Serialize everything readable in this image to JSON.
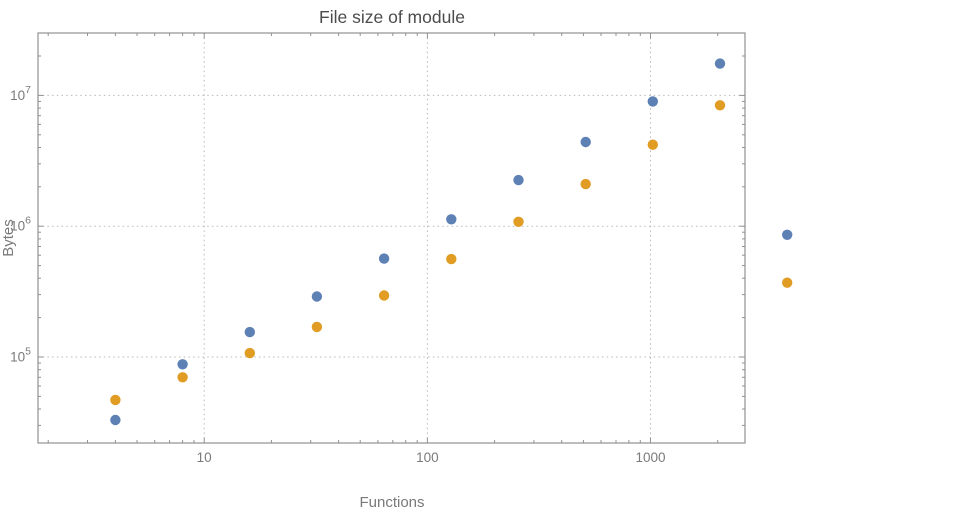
{
  "chart_data": {
    "type": "scatter",
    "title": "File size of module",
    "xlabel": "Functions",
    "ylabel": "Bytes",
    "x_scale": "log",
    "y_scale": "log",
    "grid": "dotted",
    "legend": "none",
    "xlim": [
      1.8,
      2650
    ],
    "ylim": [
      22000,
      30000000
    ],
    "x_major_ticks": [
      10,
      100,
      1000
    ],
    "y_major_ticks": [
      100000,
      1000000,
      10000000
    ],
    "x": [
      4,
      8,
      16,
      32,
      64,
      128,
      256,
      512,
      1024,
      2048,
      4096
    ],
    "series": [
      {
        "name": "blue",
        "color": "#5e81b5",
        "values": [
          33000,
          88000,
          155000,
          290000,
          565000,
          1130000,
          2250000,
          4400000,
          9000000,
          17500000,
          860000
        ]
      },
      {
        "name": "orange",
        "color": "#e19c24",
        "values": [
          47000,
          70000,
          107000,
          170000,
          295000,
          560000,
          1080000,
          2100000,
          4200000,
          8400000,
          370000
        ]
      }
    ]
  }
}
